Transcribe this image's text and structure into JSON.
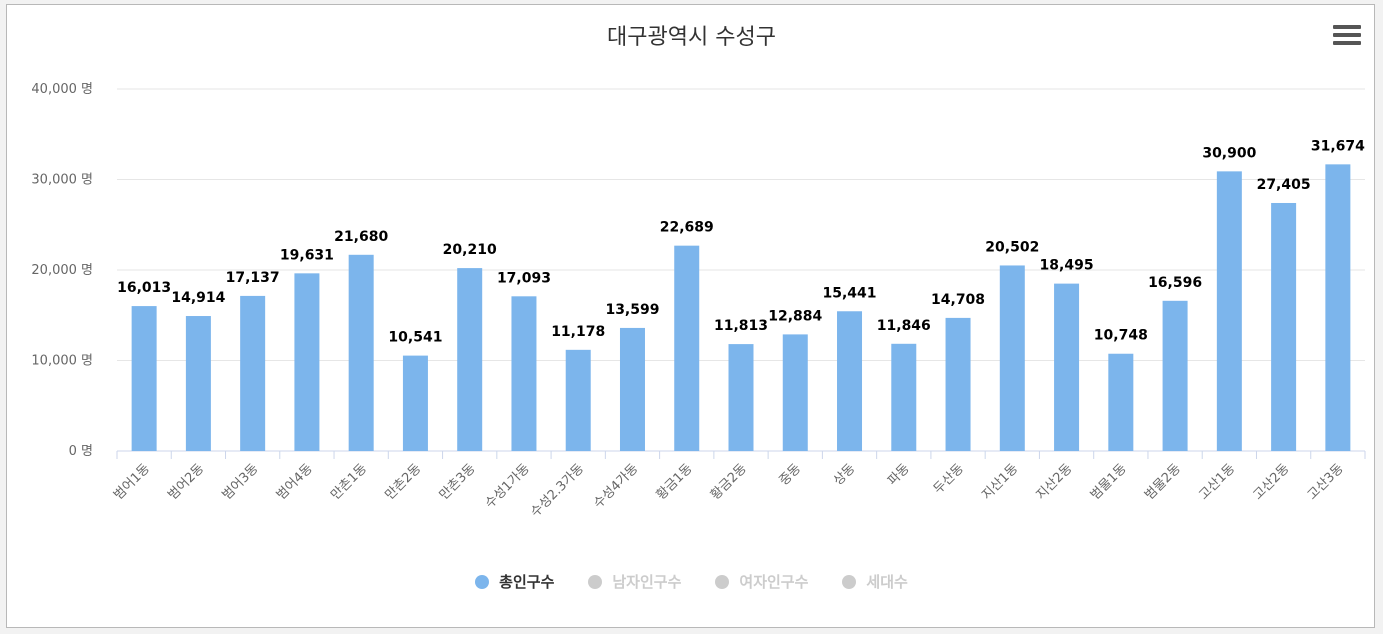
{
  "chart_data": {
    "type": "bar",
    "title": "대구광역시 수성구",
    "categories": [
      "범어1동",
      "범어2동",
      "범어3동",
      "범어4동",
      "만촌1동",
      "만촌2동",
      "만촌3동",
      "수성1가동",
      "수성2.3가동",
      "수성4가동",
      "황금1동",
      "황금2동",
      "중동",
      "상동",
      "파동",
      "두산동",
      "지산1동",
      "지산2동",
      "범물1동",
      "범물2동",
      "고산1동",
      "고산2동",
      "고산3동"
    ],
    "series": [
      {
        "name": "총인구수",
        "values": [
          16013,
          14914,
          17137,
          19631,
          21680,
          10541,
          20210,
          17093,
          11178,
          13599,
          22689,
          11813,
          12884,
          15441,
          11846,
          14708,
          20502,
          18495,
          10748,
          16596,
          30900,
          27405,
          31674
        ]
      }
    ],
    "value_labels": [
      "16,013",
      "14,914",
      "17,137",
      "19,631",
      "21,680",
      "10,541",
      "20,210",
      "17,093",
      "11,178",
      "13,599",
      "22,689",
      "11,813",
      "12,884",
      "15,441",
      "11,846",
      "14,708",
      "20,502",
      "18,495",
      "10,748",
      "16,596",
      "30,900",
      "27,405",
      "31,674"
    ],
    "ylim": [
      0,
      40000
    ],
    "yticks": [
      0,
      10000,
      20000,
      30000,
      40000
    ],
    "ytick_labels": [
      "0 명",
      "10,000 명",
      "20,000 명",
      "30,000 명",
      "40,000 명"
    ],
    "xlabel": "",
    "ylabel": "",
    "grid": true,
    "legend_position": "bottom-center"
  },
  "colors": {
    "bar": "#7cb5ec",
    "grid": "#e6e6e6",
    "inactive": "#cccccc"
  },
  "legend": [
    {
      "label": "총인구수",
      "active": true
    },
    {
      "label": "남자인구수",
      "active": false
    },
    {
      "label": "여자인구수",
      "active": false
    },
    {
      "label": "세대수",
      "active": false
    }
  ],
  "menu": {
    "icon": "hamburger-menu-icon"
  }
}
